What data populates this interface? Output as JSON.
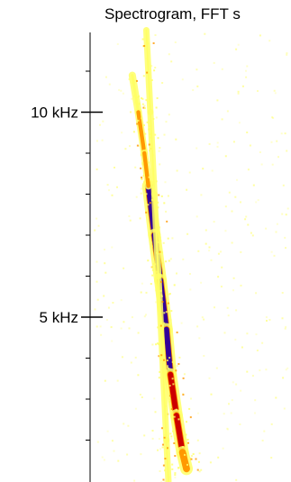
{
  "chart_data": {
    "type": "heatmap",
    "title": "Spectrogram, FFT s",
    "xlabel": "",
    "ylabel": "",
    "ylim": [
      1000,
      12000
    ],
    "y_ticks_major": [
      {
        "value": 10000,
        "label": "10 kHz"
      },
      {
        "value": 5000,
        "label": "5 kHz"
      }
    ],
    "y_ticks_minor": [
      2000,
      3000,
      4000,
      6000,
      7000,
      8000,
      9000,
      11000
    ],
    "grid": false,
    "legend": "none",
    "colors": {
      "background": "#ffffff",
      "low": "#ffff66",
      "mid": "#ff9900",
      "high": "#cc0000",
      "peak": "#330099"
    },
    "series": [
      {
        "role": "main-sweep",
        "points": [
          {
            "time": 0.29,
            "freq": 8200,
            "intensity": 0.85
          },
          {
            "time": 0.32,
            "freq": 7000,
            "intensity": 1.0
          },
          {
            "time": 0.35,
            "freq": 5900,
            "intensity": 1.0
          },
          {
            "time": 0.38,
            "freq": 4700,
            "intensity": 0.95
          },
          {
            "time": 0.4,
            "freq": 3600,
            "intensity": 0.9
          },
          {
            "time": 0.43,
            "freq": 2600,
            "intensity": 0.8
          },
          {
            "time": 0.46,
            "freq": 1700,
            "intensity": 0.6
          },
          {
            "time": 0.48,
            "freq": 1300,
            "intensity": 0.45
          }
        ]
      },
      {
        "role": "upper-sweep",
        "points": [
          {
            "time": 0.21,
            "freq": 10900,
            "intensity": 0.35
          },
          {
            "time": 0.24,
            "freq": 10000,
            "intensity": 0.45
          },
          {
            "time": 0.27,
            "freq": 9000,
            "intensity": 0.55
          },
          {
            "time": 0.29,
            "freq": 8200,
            "intensity": 0.65
          }
        ]
      },
      {
        "role": "faint-trace",
        "points": [
          {
            "time": 0.28,
            "freq": 12000,
            "intensity": 0.3
          },
          {
            "time": 0.3,
            "freq": 10000,
            "intensity": 0.3
          },
          {
            "time": 0.32,
            "freq": 8000,
            "intensity": 0.35
          },
          {
            "time": 0.34,
            "freq": 6000,
            "intensity": 0.4
          },
          {
            "time": 0.36,
            "freq": 4000,
            "intensity": 0.45
          },
          {
            "time": 0.38,
            "freq": 2000,
            "intensity": 0.35
          },
          {
            "time": 0.39,
            "freq": 1000,
            "intensity": 0.25
          }
        ]
      }
    ]
  }
}
